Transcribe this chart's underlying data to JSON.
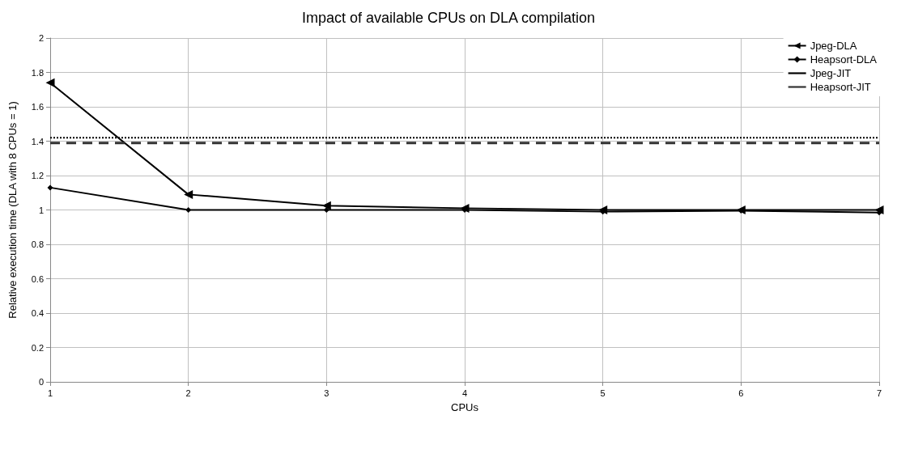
{
  "chart_data": {
    "type": "line",
    "title": "Impact of available CPUs on DLA compilation",
    "xlabel": "CPUs",
    "ylabel": "Relative execution time (DLA with 8 CPUs = 1)",
    "x": [
      1,
      2,
      3,
      4,
      5,
      6,
      7
    ],
    "xlim": [
      1,
      7
    ],
    "xticks": [
      1,
      2,
      3,
      4,
      5,
      6,
      7
    ],
    "ylim": [
      0,
      2
    ],
    "yticks": [
      0,
      0.2,
      0.4,
      0.6,
      0.8,
      1,
      1.2,
      1.4,
      1.6,
      1.8,
      2
    ],
    "grid": true,
    "legend": "top right",
    "series": [
      {
        "name": "Jpeg-DLA",
        "color": "#000000",
        "marker": "triangle",
        "line_style": "solid",
        "values": [
          1.74,
          1.09,
          1.025,
          1.01,
          1.0,
          1.0,
          1.0
        ]
      },
      {
        "name": "Heapsort-DLA",
        "color": "#000000",
        "marker": "diamond",
        "line_style": "solid",
        "values": [
          1.13,
          1.0,
          1.0,
          1.0,
          0.99,
          0.995,
          0.985
        ]
      },
      {
        "name": "Jpeg-JIT",
        "color": "#000000",
        "marker": "none",
        "line_style": "dotted",
        "values": [
          1.42,
          1.42,
          1.42,
          1.42,
          1.42,
          1.42,
          1.42
        ]
      },
      {
        "name": "Heapsort-JIT",
        "color": "#333333",
        "marker": "none",
        "line_style": "dashed",
        "values": [
          1.39,
          1.39,
          1.39,
          1.39,
          1.39,
          1.39,
          1.39
        ]
      }
    ]
  }
}
